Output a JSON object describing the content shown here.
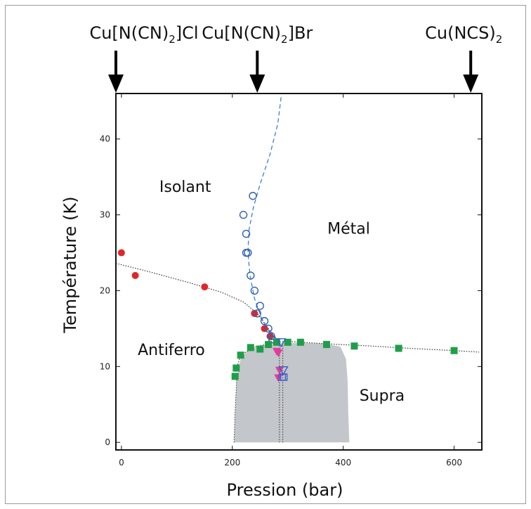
{
  "chart_data": {
    "type": "scatter",
    "title": "",
    "xlabel": "Pression (bar)",
    "ylabel": "Température (K)",
    "xlim": [
      -10,
      650
    ],
    "ylim": [
      -1,
      46
    ],
    "xticks": [
      0,
      200,
      400,
      600
    ],
    "yticks": [
      0,
      10,
      20,
      30,
      40
    ],
    "grid": false,
    "compounds": [
      {
        "label": "Cu[N(CN)2]Cl",
        "pressure": -10
      },
      {
        "label": "Cu[N(CN)2]Br",
        "pressure": 245
      },
      {
        "label": "Cu(NCS)2",
        "pressure": 630
      }
    ],
    "region_labels": [
      {
        "text": "Isolant",
        "x": 115,
        "y": 33
      },
      {
        "text": "Métal",
        "x": 410,
        "y": 27.5
      },
      {
        "text": "Antiferro",
        "x": 90,
        "y": 11.5
      },
      {
        "text": "Supra",
        "x": 470,
        "y": 5.5
      }
    ],
    "series": [
      {
        "marker": "circle-filled",
        "color": "#e0262a",
        "points": [
          [
            0,
            25
          ],
          [
            25,
            22
          ],
          [
            150,
            20.5
          ],
          [
            240,
            17
          ],
          [
            258,
            15
          ],
          [
            268,
            14
          ]
        ]
      },
      {
        "marker": "circle-open",
        "color": "#2f5fb0",
        "points": [
          [
            237,
            32.5
          ],
          [
            220,
            30
          ],
          [
            225,
            27.5
          ],
          [
            228,
            25
          ],
          [
            225,
            25
          ],
          [
            233,
            22
          ],
          [
            240,
            20
          ],
          [
            245,
            17
          ],
          [
            250,
            18
          ],
          [
            258,
            16
          ],
          [
            265,
            15
          ],
          [
            270,
            14
          ],
          [
            272,
            13.6
          ]
        ]
      },
      {
        "marker": "square-filled",
        "color": "#1f9e4a",
        "points": [
          [
            205,
            8.7
          ],
          [
            207,
            9.8
          ],
          [
            215,
            11.5
          ],
          [
            233,
            12.5
          ],
          [
            250,
            12.3
          ],
          [
            265,
            12.9
          ],
          [
            280,
            13.2
          ],
          [
            300,
            13.2
          ],
          [
            323,
            13.2
          ],
          [
            370,
            12.9
          ],
          [
            420,
            12.7
          ],
          [
            500,
            12.4
          ],
          [
            600,
            12.1
          ]
        ]
      },
      {
        "marker": "triangle-down-filled",
        "color": "#e23d9a",
        "points": [
          [
            280,
            12
          ],
          [
            283,
            11.8
          ],
          [
            285,
            9.5
          ],
          [
            283,
            8.5
          ]
        ]
      },
      {
        "marker": "triangle-down-open",
        "color": "#3a5bc9",
        "points": [
          [
            288,
            13.2
          ],
          [
            292,
            9.5
          ]
        ]
      },
      {
        "marker": "square-open",
        "color": "#3a5bc9",
        "points": [
          [
            290,
            8.6
          ],
          [
            293,
            8.6
          ]
        ]
      }
    ],
    "curves": {
      "afm_boundary": [
        [
          -10,
          23.6
        ],
        [
          50,
          22.5
        ],
        [
          120,
          21.1
        ],
        [
          180,
          19.8
        ],
        [
          220,
          18.5
        ],
        [
          245,
          17
        ],
        [
          265,
          15
        ],
        [
          278,
          13.7
        ]
      ],
      "sc_boundary": [
        [
          205,
          9
        ],
        [
          215,
          11.5
        ],
        [
          240,
          12.6
        ],
        [
          280,
          13.2
        ],
        [
          300,
          13.3
        ],
        [
          370,
          13
        ],
        [
          450,
          12.7
        ],
        [
          520,
          12.4
        ],
        [
          600,
          12.1
        ],
        [
          645,
          11.9
        ]
      ],
      "mott_line": [
        [
          288,
          45.5
        ],
        [
          282,
          42
        ],
        [
          268,
          38
        ],
        [
          250,
          34
        ],
        [
          238,
          31
        ],
        [
          230,
          28
        ],
        [
          228,
          25
        ],
        [
          232,
          22
        ],
        [
          240,
          19
        ],
        [
          252,
          16.5
        ],
        [
          265,
          14.8
        ],
        [
          280,
          13.4
        ]
      ],
      "sc_dome": [
        [
          203,
          0
        ],
        [
          205,
          4
        ],
        [
          208,
          8.5
        ],
        [
          215,
          11
        ],
        [
          230,
          12.3
        ],
        [
          260,
          12.9
        ],
        [
          290,
          13.1
        ],
        [
          330,
          13.1
        ],
        [
          370,
          13
        ],
        [
          395,
          12.6
        ],
        [
          405,
          11
        ],
        [
          408,
          8
        ],
        [
          409,
          4
        ],
        [
          411,
          0
        ]
      ]
    }
  }
}
